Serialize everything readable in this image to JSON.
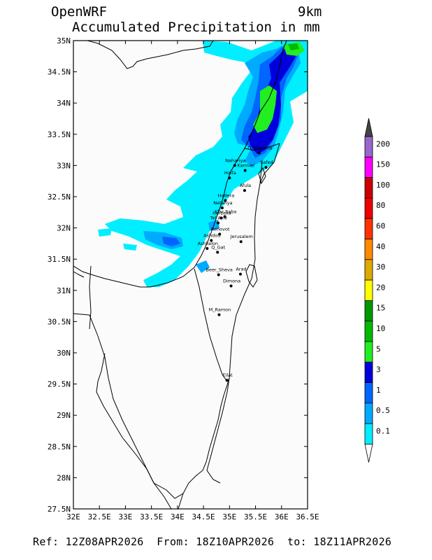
{
  "header": {
    "model": "OpenWRF",
    "resolution": "9km",
    "field": "Accumulated Precipitation in mm"
  },
  "map": {
    "lat_ticks": [
      "35N",
      "34.5N",
      "34N",
      "33.5N",
      "33N",
      "32.5N",
      "32N",
      "31.5N",
      "31N",
      "30.5N",
      "30N",
      "29.5N",
      "29N",
      "28.5N",
      "28N",
      "27.5N"
    ],
    "lon_ticks": [
      "32E",
      "32.5E",
      "33E",
      "33.5E",
      "34E",
      "34.5E",
      "35E",
      "35.5E",
      "36E",
      "36.5E"
    ],
    "lat_range": [
      27.5,
      35
    ],
    "lon_range": [
      32,
      36.5
    ],
    "cities": [
      {
        "name": "Q_Shmona",
        "lat": 33.2,
        "lon": 35.57
      },
      {
        "name": "Nahariya",
        "lat": 33.0,
        "lon": 35.1
      },
      {
        "name": "Karmiel",
        "lat": 32.92,
        "lon": 35.3
      },
      {
        "name": "Safed",
        "lat": 32.97,
        "lon": 35.7
      },
      {
        "name": "Haifa",
        "lat": 32.8,
        "lon": 35.0
      },
      {
        "name": "Afula",
        "lat": 32.6,
        "lon": 35.29
      },
      {
        "name": "Hadera",
        "lat": 32.44,
        "lon": 34.92
      },
      {
        "name": "Netanya",
        "lat": 32.32,
        "lon": 34.86
      },
      {
        "name": "Herzelia",
        "lat": 32.16,
        "lon": 34.84
      },
      {
        "name": "Kfar Saba",
        "lat": 32.18,
        "lon": 34.91
      },
      {
        "name": "Tel Aviv",
        "lat": 32.08,
        "lon": 34.78
      },
      {
        "name": "Rehovot",
        "lat": 31.9,
        "lon": 34.81
      },
      {
        "name": "Ashdod",
        "lat": 31.8,
        "lon": 34.65
      },
      {
        "name": "Jerusalem",
        "lat": 31.78,
        "lon": 35.22
      },
      {
        "name": "Ashkelon",
        "lat": 31.67,
        "lon": 34.57
      },
      {
        "name": "Q_Gat",
        "lat": 31.61,
        "lon": 34.77
      },
      {
        "name": "Beer_Sheva",
        "lat": 31.25,
        "lon": 34.79
      },
      {
        "name": "Arad",
        "lat": 31.26,
        "lon": 35.21
      },
      {
        "name": "Dimona",
        "lat": 31.07,
        "lon": 35.03
      },
      {
        "name": "M_Ramon",
        "lat": 30.61,
        "lon": 34.8
      },
      {
        "name": "Eilat",
        "lat": 29.56,
        "lon": 34.95
      }
    ]
  },
  "legend": {
    "levels": [
      "200",
      "150",
      "100",
      "80",
      "60",
      "40",
      "30",
      "20",
      "15",
      "10",
      "5",
      "3",
      "1",
      "0.5",
      "0.1"
    ],
    "colors": [
      "#9966cc",
      "#ff00ff",
      "#cc0000",
      "#ee0000",
      "#ff3300",
      "#ff8800",
      "#ddaa00",
      "#ffff00",
      "#009900",
      "#00bb00",
      "#22ee22",
      "#0000dd",
      "#0066ff",
      "#00aaff",
      "#00eeff"
    ],
    "top_arrow_color": "#444444",
    "bottom_arrow_color": "#ffffff"
  },
  "footer": {
    "ref": "Ref: 12Z08APR2026",
    "from": "From: 18Z10APR2026",
    "to": "to: 18Z11APR2026"
  }
}
